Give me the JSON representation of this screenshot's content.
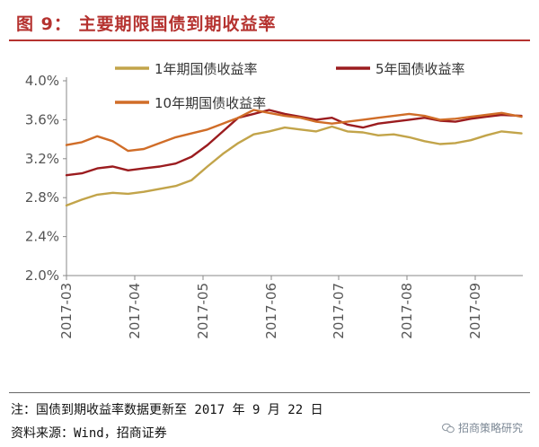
{
  "figure": {
    "title": "图 9：  主要期限国债到期收益率",
    "note": "注：国债到期收益率数据更新至 2017 年 9 月 22 日",
    "source": "资料来源：Wind，招商证券",
    "watermark": "招商策略研究",
    "accent_color": "#b5322f"
  },
  "chart_data": {
    "type": "line",
    "title": "",
    "xlabel": "",
    "ylabel": "",
    "x_tick_labels": [
      "2017-03",
      "2017-04",
      "2017-05",
      "2017-06",
      "2017-07",
      "2017-08",
      "2017-09"
    ],
    "y_tick_labels": [
      "2.0%",
      "2.4%",
      "2.8%",
      "3.2%",
      "3.6%",
      "4.0%"
    ],
    "ylim": [
      2.0,
      4.0
    ],
    "grid": false,
    "legend_position": "top",
    "x": [
      "2017-03-01",
      "2017-03-08",
      "2017-03-15",
      "2017-03-22",
      "2017-03-29",
      "2017-04-05",
      "2017-04-12",
      "2017-04-19",
      "2017-04-26",
      "2017-05-03",
      "2017-05-10",
      "2017-05-17",
      "2017-05-24",
      "2017-05-31",
      "2017-06-07",
      "2017-06-14",
      "2017-06-21",
      "2017-06-28",
      "2017-07-05",
      "2017-07-12",
      "2017-07-19",
      "2017-07-26",
      "2017-08-02",
      "2017-08-09",
      "2017-08-16",
      "2017-08-23",
      "2017-08-30",
      "2017-09-06",
      "2017-09-13",
      "2017-09-22"
    ],
    "series": [
      {
        "name": "1年期国债收益率",
        "color": "#c2a44a",
        "values": [
          2.72,
          2.78,
          2.83,
          2.85,
          2.84,
          2.86,
          2.89,
          2.92,
          2.98,
          3.12,
          3.25,
          3.36,
          3.45,
          3.48,
          3.52,
          3.5,
          3.48,
          3.53,
          3.48,
          3.47,
          3.44,
          3.45,
          3.42,
          3.38,
          3.35,
          3.36,
          3.39,
          3.44,
          3.48,
          3.46
        ]
      },
      {
        "name": "5年国债收益率",
        "color": "#9b1c1f",
        "values": [
          3.03,
          3.05,
          3.1,
          3.12,
          3.08,
          3.1,
          3.12,
          3.15,
          3.22,
          3.34,
          3.48,
          3.62,
          3.66,
          3.7,
          3.66,
          3.63,
          3.6,
          3.62,
          3.55,
          3.52,
          3.56,
          3.58,
          3.6,
          3.62,
          3.59,
          3.58,
          3.61,
          3.63,
          3.65,
          3.64
        ]
      },
      {
        "name": "10年期国债收益率",
        "color": "#d06d28",
        "values": [
          3.34,
          3.37,
          3.43,
          3.38,
          3.28,
          3.3,
          3.36,
          3.42,
          3.46,
          3.5,
          3.56,
          3.62,
          3.7,
          3.67,
          3.64,
          3.62,
          3.58,
          3.56,
          3.58,
          3.6,
          3.62,
          3.64,
          3.66,
          3.64,
          3.6,
          3.61,
          3.63,
          3.65,
          3.67,
          3.63
        ]
      }
    ]
  }
}
